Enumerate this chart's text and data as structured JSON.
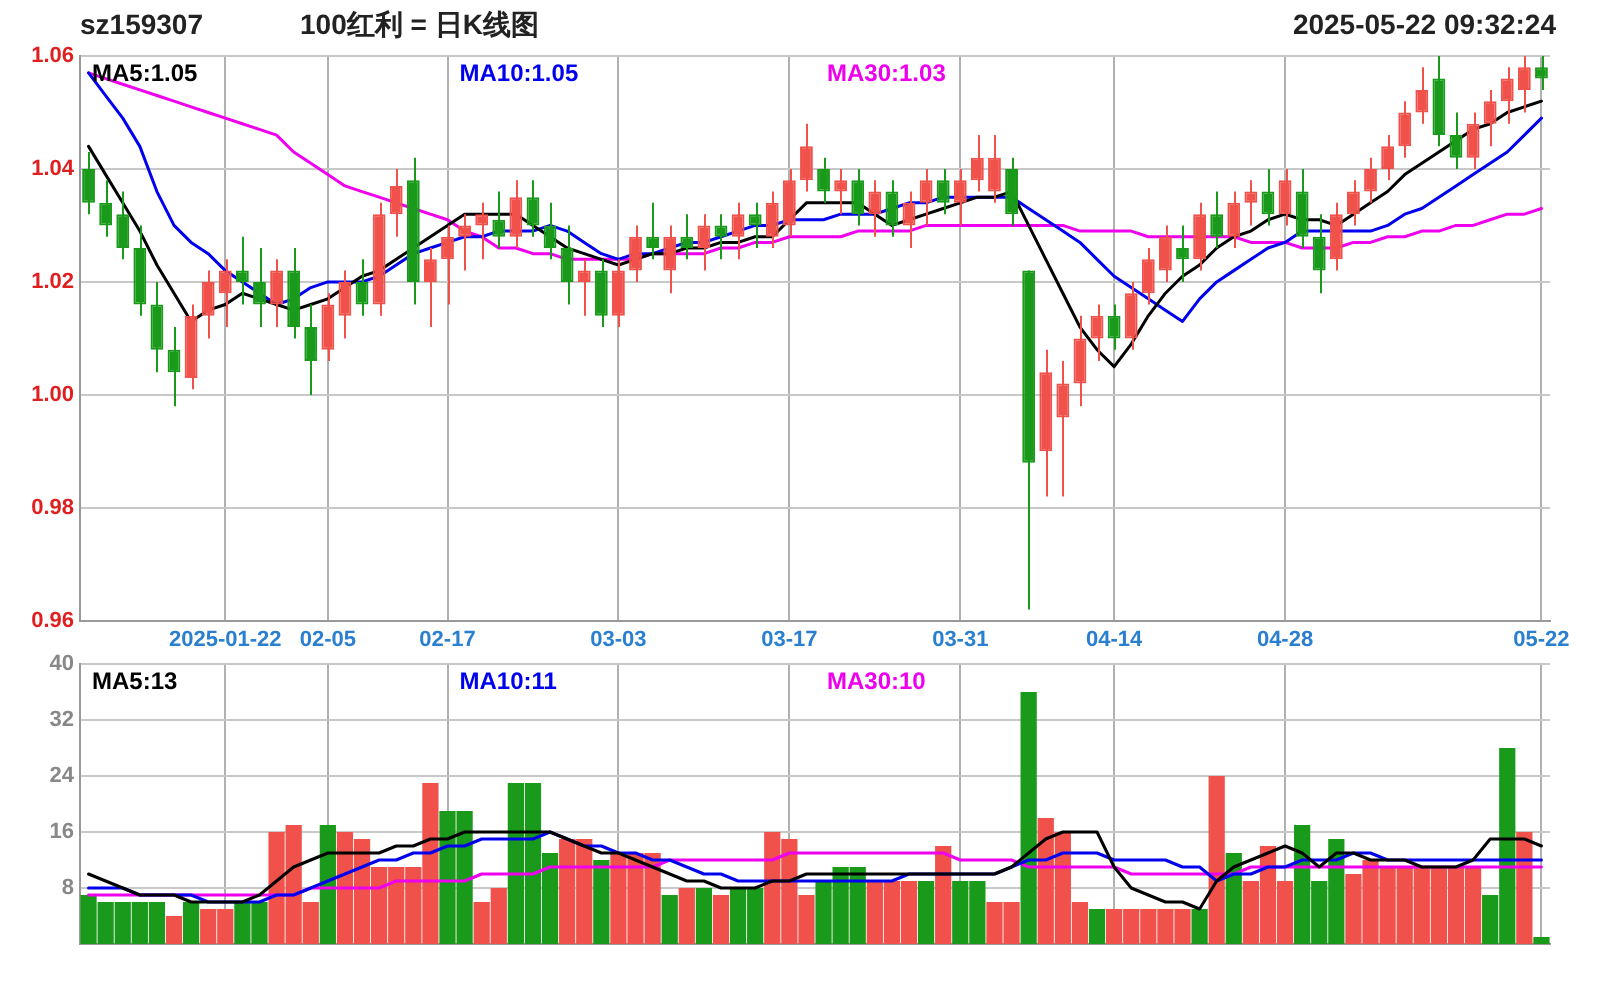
{
  "chart_data": [
    {
      "type": "candlestick",
      "subtitle": "sz159307",
      "title": "100红利 = 日K线图",
      "annotations": [
        "2025-05-22 09:32:24"
      ],
      "categories": [
        null,
        null,
        null,
        null,
        null,
        null,
        null,
        null,
        "2025-01-22",
        null,
        null,
        null,
        null,
        null,
        "02-05",
        null,
        null,
        null,
        null,
        null,
        null,
        "02-17",
        null,
        null,
        null,
        null,
        null,
        null,
        null,
        null,
        null,
        "03-03",
        null,
        null,
        null,
        null,
        null,
        null,
        null,
        null,
        null,
        "03-17",
        null,
        null,
        null,
        null,
        null,
        null,
        null,
        null,
        null,
        "03-31",
        null,
        null,
        null,
        null,
        null,
        null,
        null,
        null,
        "04-14",
        null,
        null,
        null,
        null,
        null,
        null,
        null,
        null,
        null,
        "04-28",
        null,
        null,
        null,
        null,
        null,
        null,
        null,
        null,
        null,
        null,
        null,
        null,
        null,
        null,
        "05-22"
      ],
      "ohlc": [
        [
          1.04,
          1.043,
          1.032,
          1.034
        ],
        [
          1.034,
          1.038,
          1.028,
          1.03
        ],
        [
          1.032,
          1.036,
          1.024,
          1.026
        ],
        [
          1.026,
          1.03,
          1.014,
          1.016
        ],
        [
          1.016,
          1.02,
          1.004,
          1.008
        ],
        [
          1.008,
          1.012,
          0.998,
          1.004
        ],
        [
          1.003,
          1.016,
          1.001,
          1.014
        ],
        [
          1.014,
          1.022,
          1.01,
          1.02
        ],
        [
          1.018,
          1.024,
          1.012,
          1.022
        ],
        [
          1.022,
          1.028,
          1.016,
          1.02
        ],
        [
          1.02,
          1.026,
          1.012,
          1.016
        ],
        [
          1.016,
          1.024,
          1.012,
          1.022
        ],
        [
          1.022,
          1.026,
          1.01,
          1.012
        ],
        [
          1.012,
          1.016,
          1.0,
          1.006
        ],
        [
          1.008,
          1.018,
          1.006,
          1.016
        ],
        [
          1.014,
          1.022,
          1.01,
          1.02
        ],
        [
          1.02,
          1.024,
          1.014,
          1.016
        ],
        [
          1.016,
          1.034,
          1.014,
          1.032
        ],
        [
          1.032,
          1.04,
          1.028,
          1.037
        ],
        [
          1.038,
          1.042,
          1.016,
          1.02
        ],
        [
          1.02,
          1.026,
          1.012,
          1.024
        ],
        [
          1.024,
          1.03,
          1.016,
          1.028
        ],
        [
          1.028,
          1.032,
          1.022,
          1.03
        ],
        [
          1.03,
          1.034,
          1.024,
          1.032
        ],
        [
          1.031,
          1.036,
          1.026,
          1.028
        ],
        [
          1.028,
          1.038,
          1.026,
          1.035
        ],
        [
          1.035,
          1.038,
          1.028,
          1.03
        ],
        [
          1.03,
          1.034,
          1.024,
          1.026
        ],
        [
          1.026,
          1.03,
          1.016,
          1.02
        ],
        [
          1.02,
          1.024,
          1.014,
          1.022
        ],
        [
          1.022,
          1.024,
          1.012,
          1.014
        ],
        [
          1.014,
          1.024,
          1.012,
          1.022
        ],
        [
          1.022,
          1.03,
          1.02,
          1.028
        ],
        [
          1.028,
          1.034,
          1.024,
          1.026
        ],
        [
          1.022,
          1.03,
          1.018,
          1.028
        ],
        [
          1.028,
          1.032,
          1.024,
          1.026
        ],
        [
          1.026,
          1.032,
          1.022,
          1.03
        ],
        [
          1.03,
          1.032,
          1.024,
          1.028
        ],
        [
          1.028,
          1.034,
          1.024,
          1.032
        ],
        [
          1.032,
          1.034,
          1.026,
          1.03
        ],
        [
          1.028,
          1.036,
          1.026,
          1.034
        ],
        [
          1.03,
          1.04,
          1.028,
          1.038
        ],
        [
          1.038,
          1.048,
          1.036,
          1.044
        ],
        [
          1.04,
          1.042,
          1.034,
          1.036
        ],
        [
          1.036,
          1.04,
          1.032,
          1.038
        ],
        [
          1.038,
          1.04,
          1.03,
          1.032
        ],
        [
          1.032,
          1.038,
          1.028,
          1.036
        ],
        [
          1.036,
          1.038,
          1.028,
          1.03
        ],
        [
          1.03,
          1.036,
          1.026,
          1.034
        ],
        [
          1.034,
          1.04,
          1.03,
          1.038
        ],
        [
          1.038,
          1.04,
          1.032,
          1.034
        ],
        [
          1.034,
          1.04,
          1.03,
          1.038
        ],
        [
          1.038,
          1.046,
          1.036,
          1.042
        ],
        [
          1.036,
          1.046,
          1.034,
          1.042
        ],
        [
          1.04,
          1.042,
          1.03,
          1.032
        ],
        [
          1.022,
          1.022,
          0.962,
          0.988
        ],
        [
          0.99,
          1.008,
          0.982,
          1.004
        ],
        [
          0.996,
          1.006,
          0.982,
          1.002
        ],
        [
          1.002,
          1.014,
          0.998,
          1.01
        ],
        [
          1.01,
          1.016,
          1.006,
          1.014
        ],
        [
          1.014,
          1.016,
          1.008,
          1.01
        ],
        [
          1.01,
          1.02,
          1.008,
          1.018
        ],
        [
          1.018,
          1.026,
          1.016,
          1.024
        ],
        [
          1.022,
          1.03,
          1.02,
          1.028
        ],
        [
          1.026,
          1.03,
          1.02,
          1.024
        ],
        [
          1.024,
          1.034,
          1.022,
          1.032
        ],
        [
          1.032,
          1.036,
          1.026,
          1.028
        ],
        [
          1.028,
          1.036,
          1.026,
          1.034
        ],
        [
          1.034,
          1.038,
          1.03,
          1.036
        ],
        [
          1.036,
          1.04,
          1.03,
          1.032
        ],
        [
          1.032,
          1.04,
          1.03,
          1.038
        ],
        [
          1.036,
          1.04,
          1.026,
          1.028
        ],
        [
          1.028,
          1.032,
          1.018,
          1.022
        ],
        [
          1.024,
          1.034,
          1.022,
          1.032
        ],
        [
          1.032,
          1.038,
          1.03,
          1.036
        ],
        [
          1.036,
          1.042,
          1.034,
          1.04
        ],
        [
          1.04,
          1.046,
          1.038,
          1.044
        ],
        [
          1.044,
          1.052,
          1.042,
          1.05
        ],
        [
          1.05,
          1.058,
          1.048,
          1.054
        ],
        [
          1.056,
          1.06,
          1.044,
          1.046
        ],
        [
          1.046,
          1.05,
          1.04,
          1.042
        ],
        [
          1.042,
          1.05,
          1.04,
          1.048
        ],
        [
          1.048,
          1.054,
          1.044,
          1.052
        ],
        [
          1.052,
          1.058,
          1.048,
          1.056
        ],
        [
          1.054,
          1.06,
          1.05,
          1.058
        ],
        [
          1.058,
          1.06,
          1.054,
          1.056
        ]
      ],
      "colors": [
        "#1a9a1a",
        "#1a9a1a",
        "#1a9a1a",
        "#1a9a1a",
        "#1a9a1a",
        "#1a9a1a",
        "#f0524b",
        "#f0524b",
        "#f0524b",
        "#1a9a1a",
        "#1a9a1a",
        "#f0524b",
        "#1a9a1a",
        "#1a9a1a",
        "#f0524b",
        "#f0524b",
        "#1a9a1a",
        "#f0524b",
        "#f0524b",
        "#1a9a1a",
        "#f0524b",
        "#f0524b",
        "#f0524b",
        "#f0524b",
        "#1a9a1a",
        "#f0524b",
        "#1a9a1a",
        "#1a9a1a",
        "#1a9a1a",
        "#f0524b",
        "#1a9a1a",
        "#f0524b",
        "#f0524b",
        "#1a9a1a",
        "#f0524b",
        "#1a9a1a",
        "#f0524b",
        "#1a9a1a",
        "#f0524b",
        "#1a9a1a",
        "#f0524b",
        "#f0524b",
        "#f0524b",
        "#1a9a1a",
        "#f0524b",
        "#1a9a1a",
        "#f0524b",
        "#1a9a1a",
        "#f0524b",
        "#f0524b",
        "#1a9a1a",
        "#f0524b",
        "#f0524b",
        "#f0524b",
        "#1a9a1a",
        "#1a9a1a",
        "#f0524b",
        "#f0524b",
        "#f0524b",
        "#f0524b",
        "#1a9a1a",
        "#f0524b",
        "#f0524b",
        "#f0524b",
        "#1a9a1a",
        "#f0524b",
        "#1a9a1a",
        "#f0524b",
        "#f0524b",
        "#1a9a1a",
        "#f0524b",
        "#1a9a1a",
        "#1a9a1a",
        "#f0524b",
        "#f0524b",
        "#f0524b",
        "#f0524b",
        "#f0524b",
        "#f0524b",
        "#1a9a1a",
        "#1a9a1a",
        "#f0524b",
        "#f0524b",
        "#f0524b",
        "#f0524b",
        "#1a9a1a"
      ],
      "series": [
        {
          "type": "line",
          "name": "MA5:1.05",
          "color": "#000000",
          "values": [
            1.044,
            1.039,
            1.034,
            1.029,
            1.023,
            1.018,
            1.013,
            1.015,
            1.016,
            1.018,
            1.017,
            1.016,
            1.015,
            1.016,
            1.017,
            1.019,
            1.021,
            1.022,
            1.024,
            1.026,
            1.028,
            1.03,
            1.032,
            1.032,
            1.032,
            1.032,
            1.03,
            1.028,
            1.026,
            1.025,
            1.024,
            1.023,
            1.024,
            1.025,
            1.025,
            1.026,
            1.026,
            1.027,
            1.027,
            1.028,
            1.028,
            1.031,
            1.034,
            1.034,
            1.034,
            1.034,
            1.032,
            1.03,
            1.031,
            1.032,
            1.033,
            1.034,
            1.035,
            1.035,
            1.036,
            1.03,
            1.024,
            1.018,
            1.012,
            1.008,
            1.005,
            1.009,
            1.014,
            1.018,
            1.021,
            1.023,
            1.026,
            1.028,
            1.029,
            1.031,
            1.032,
            1.031,
            1.031,
            1.03,
            1.032,
            1.034,
            1.036,
            1.039,
            1.041,
            1.043,
            1.045,
            1.047,
            1.048,
            1.05,
            1.051,
            1.052
          ]
        },
        {
          "type": "line",
          "name": "MA10:1.05",
          "color": "#0000ee",
          "values": [
            1.057,
            1.053,
            1.049,
            1.044,
            1.036,
            1.03,
            1.027,
            1.025,
            1.022,
            1.02,
            1.018,
            1.016,
            1.017,
            1.019,
            1.02,
            1.02,
            1.02,
            1.021,
            1.023,
            1.025,
            1.026,
            1.027,
            1.028,
            1.028,
            1.029,
            1.029,
            1.029,
            1.03,
            1.029,
            1.027,
            1.025,
            1.024,
            1.025,
            1.025,
            1.026,
            1.027,
            1.027,
            1.028,
            1.029,
            1.03,
            1.03,
            1.031,
            1.031,
            1.031,
            1.032,
            1.032,
            1.032,
            1.033,
            1.034,
            1.034,
            1.035,
            1.035,
            1.035,
            1.035,
            1.035,
            1.033,
            1.031,
            1.029,
            1.027,
            1.024,
            1.021,
            1.019,
            1.017,
            1.015,
            1.013,
            1.017,
            1.02,
            1.022,
            1.024,
            1.026,
            1.027,
            1.029,
            1.029,
            1.029,
            1.029,
            1.029,
            1.03,
            1.032,
            1.033,
            1.035,
            1.037,
            1.039,
            1.041,
            1.043,
            1.046,
            1.049
          ]
        },
        {
          "type": "line",
          "name": "MA30:1.03",
          "color": "#ee00ee",
          "values": [
            1.057,
            1.056,
            1.055,
            1.054,
            1.053,
            1.052,
            1.051,
            1.05,
            1.049,
            1.048,
            1.047,
            1.046,
            1.043,
            1.041,
            1.039,
            1.037,
            1.036,
            1.035,
            1.034,
            1.033,
            1.032,
            1.031,
            1.029,
            1.028,
            1.026,
            1.026,
            1.025,
            1.025,
            1.024,
            1.024,
            1.024,
            1.024,
            1.024,
            1.025,
            1.025,
            1.025,
            1.025,
            1.026,
            1.026,
            1.027,
            1.027,
            1.028,
            1.028,
            1.028,
            1.028,
            1.029,
            1.029,
            1.029,
            1.029,
            1.03,
            1.03,
            1.03,
            1.03,
            1.03,
            1.03,
            1.03,
            1.03,
            1.03,
            1.029,
            1.029,
            1.029,
            1.029,
            1.028,
            1.028,
            1.028,
            1.028,
            1.028,
            1.028,
            1.027,
            1.027,
            1.027,
            1.026,
            1.026,
            1.026,
            1.027,
            1.027,
            1.028,
            1.028,
            1.029,
            1.029,
            1.03,
            1.03,
            1.031,
            1.032,
            1.032,
            1.033
          ]
        }
      ],
      "ylim": [
        0.96,
        1.06
      ],
      "yticks": [
        0.96,
        0.98,
        {
          "value": 1,
          "label": "1.00"
        },
        1.02,
        1.04,
        1.06
      ],
      "grid": true,
      "legend": "top"
    },
    {
      "type": "bar",
      "tick_labels": "y",
      "categories": [
        null,
        null,
        null,
        null,
        null,
        null,
        null,
        null,
        null,
        null,
        null,
        null,
        null,
        null,
        null,
        null,
        null,
        null,
        null,
        null,
        null,
        null,
        null,
        null,
        null,
        null,
        null,
        null,
        null,
        null,
        null,
        null,
        null,
        null,
        null,
        null,
        null,
        null,
        null,
        null,
        null,
        null,
        null,
        null,
        null,
        null,
        null,
        null,
        null,
        null,
        null,
        null,
        null,
        null,
        null,
        null,
        null,
        null,
        null,
        null,
        null,
        null,
        null,
        null,
        null,
        null,
        null,
        null,
        null,
        null,
        null,
        null,
        null,
        null,
        null,
        null,
        null,
        null,
        null,
        null,
        null,
        null,
        null,
        null,
        null,
        null
      ],
      "series": [
        {
          "type": "bar",
          "values": [
            7,
            6,
            6,
            6,
            6,
            4,
            6,
            5,
            5,
            6,
            6,
            16,
            17,
            6,
            17,
            16,
            15,
            11,
            11,
            11,
            23,
            19,
            19,
            6,
            8,
            23,
            23,
            13,
            15,
            15,
            12,
            13,
            13,
            13,
            7,
            8,
            8,
            7,
            8,
            8,
            16,
            15,
            7,
            9,
            11,
            11,
            9,
            9,
            9,
            9,
            14,
            9,
            9,
            6,
            6,
            36,
            18,
            16,
            6,
            5,
            5,
            5,
            5,
            5,
            5,
            5,
            24,
            13,
            9,
            14,
            9,
            17,
            9,
            15,
            10,
            12,
            11,
            11,
            11,
            11,
            11,
            11,
            7,
            28,
            16,
            1
          ],
          "colors": [
            "#1a9a1a",
            "#1a9a1a",
            "#1a9a1a",
            "#1a9a1a",
            "#1a9a1a",
            "#f0524b",
            "#1a9a1a",
            "#f0524b",
            "#f0524b",
            "#1a9a1a",
            "#1a9a1a",
            "#f0524b",
            "#f0524b",
            "#f0524b",
            "#1a9a1a",
            "#f0524b",
            "#f0524b",
            "#f0524b",
            "#f0524b",
            "#f0524b",
            "#f0524b",
            "#1a9a1a",
            "#1a9a1a",
            "#f0524b",
            "#f0524b",
            "#1a9a1a",
            "#1a9a1a",
            "#1a9a1a",
            "#f0524b",
            "#f0524b",
            "#1a9a1a",
            "#f0524b",
            "#f0524b",
            "#f0524b",
            "#1a9a1a",
            "#f0524b",
            "#1a9a1a",
            "#f0524b",
            "#1a9a1a",
            "#1a9a1a",
            "#f0524b",
            "#f0524b",
            "#f0524b",
            "#1a9a1a",
            "#1a9a1a",
            "#1a9a1a",
            "#f0524b",
            "#f0524b",
            "#f0524b",
            "#1a9a1a",
            "#f0524b",
            "#1a9a1a",
            "#1a9a1a",
            "#f0524b",
            "#f0524b",
            "#1a9a1a",
            "#f0524b",
            "#f0524b",
            "#f0524b",
            "#1a9a1a",
            "#f0524b",
            "#f0524b",
            "#f0524b",
            "#f0524b",
            "#f0524b",
            "#1a9a1a",
            "#f0524b",
            "#1a9a1a",
            "#f0524b",
            "#f0524b",
            "#f0524b",
            "#1a9a1a",
            "#1a9a1a",
            "#1a9a1a",
            "#f0524b",
            "#f0524b",
            "#f0524b",
            "#f0524b",
            "#f0524b",
            "#f0524b",
            "#f0524b",
            "#f0524b",
            "#1a9a1a",
            "#1a9a1a",
            "#f0524b",
            "#1a9a1a"
          ]
        },
        {
          "type": "line",
          "name": "MA5:13",
          "color": "#000000",
          "values": [
            10,
            9,
            8,
            7,
            7,
            7,
            6,
            6,
            6,
            6,
            7,
            9,
            11,
            12,
            13,
            13,
            13,
            13,
            14,
            14,
            15,
            15,
            16,
            16,
            16,
            16,
            16,
            16,
            15,
            14,
            13,
            13,
            12,
            11,
            10,
            9,
            9,
            8,
            8,
            8,
            9,
            9,
            10,
            10,
            10,
            10,
            10,
            10,
            10,
            10,
            10,
            10,
            10,
            10,
            11,
            13,
            15,
            16,
            16,
            16,
            11,
            8,
            7,
            6,
            6,
            5,
            9,
            11,
            12,
            13,
            14,
            13,
            11,
            13,
            13,
            12,
            12,
            12,
            11,
            11,
            11,
            12,
            15,
            15,
            15,
            14
          ]
        },
        {
          "type": "line",
          "name": "MA10:11",
          "color": "#0000ee",
          "values": [
            8,
            8,
            8,
            7,
            7,
            7,
            7,
            6,
            6,
            6,
            6,
            7,
            7,
            8,
            9,
            10,
            11,
            12,
            12,
            13,
            13,
            14,
            14,
            15,
            15,
            15,
            15,
            16,
            15,
            14,
            14,
            13,
            13,
            12,
            12,
            11,
            10,
            10,
            9,
            9,
            9,
            9,
            9,
            9,
            9,
            9,
            9,
            9,
            10,
            10,
            10,
            10,
            10,
            10,
            11,
            12,
            12,
            13,
            13,
            13,
            12,
            12,
            12,
            12,
            11,
            11,
            9,
            10,
            10,
            11,
            11,
            12,
            12,
            12,
            13,
            13,
            12,
            12,
            12,
            12,
            12,
            12,
            12,
            12,
            12,
            12
          ]
        },
        {
          "type": "line",
          "name": "MA30:10",
          "color": "#ee00ee",
          "values": [
            7,
            7,
            7,
            7,
            7,
            7,
            7,
            7,
            7,
            7,
            7,
            7,
            7,
            8,
            8,
            8,
            8,
            8,
            9,
            9,
            9,
            9,
            9,
            10,
            10,
            10,
            10,
            11,
            11,
            11,
            11,
            11,
            11,
            11,
            12,
            12,
            12,
            12,
            12,
            12,
            12,
            13,
            13,
            13,
            13,
            13,
            13,
            13,
            13,
            13,
            13,
            12,
            12,
            12,
            12,
            11,
            11,
            11,
            11,
            11,
            11,
            10,
            10,
            10,
            10,
            10,
            10,
            10,
            11,
            11,
            11,
            11,
            11,
            11,
            11,
            11,
            11,
            11,
            11,
            11,
            11,
            11,
            11,
            11,
            11,
            11
          ]
        }
      ],
      "ylim": [
        0,
        40
      ],
      "yticks": [
        8,
        16,
        24,
        32,
        40
      ],
      "grid": true,
      "legend": "top"
    }
  ]
}
